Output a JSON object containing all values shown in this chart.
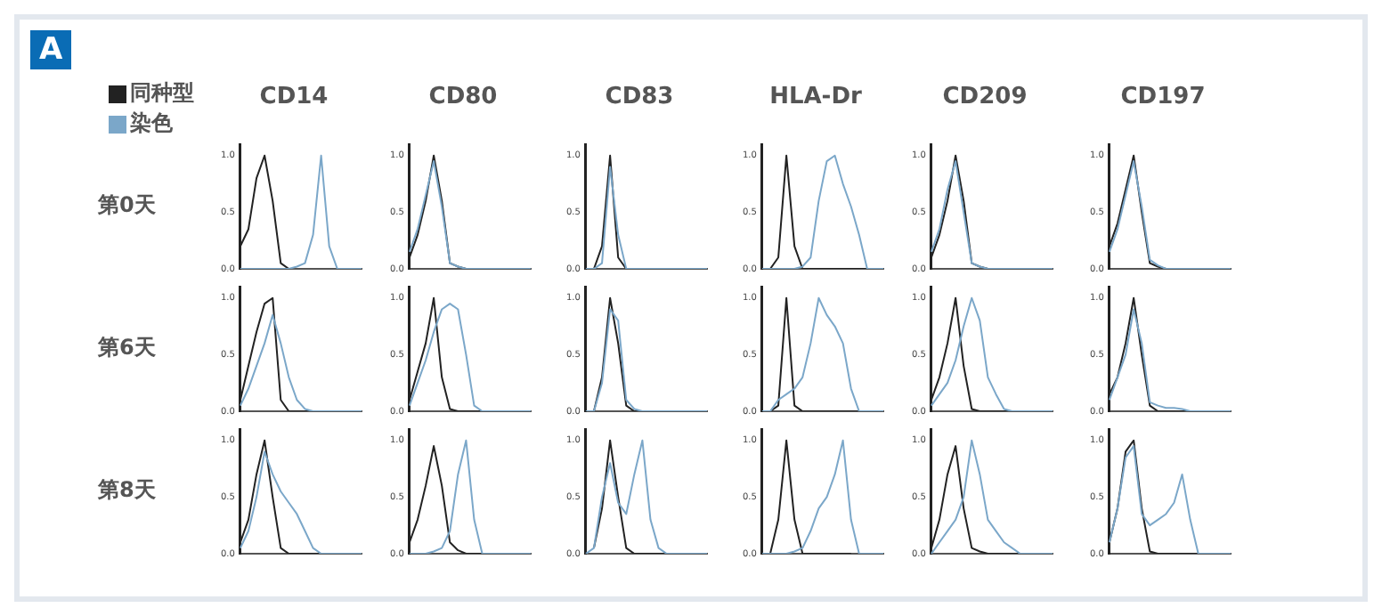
{
  "chart_data": [
    {
      "type": "line",
      "title": "CD14",
      "ylabel": "第0天",
      "annotations": [
        "A"
      ],
      "legend": "top left",
      "tick_labels": "y",
      "categories": [
        null,
        null,
        null,
        null,
        null,
        null,
        null,
        null,
        null,
        null,
        null,
        null,
        null,
        null,
        null,
        null
      ],
      "ylim": [
        0,
        1.1
      ],
      "yticks": [
        {
          "value": 0,
          "label": "0.0"
        },
        {
          "value": 0.5,
          "label": "0.5"
        },
        {
          "value": 1,
          "label": "1.0"
        }
      ],
      "series": [
        {
          "name": "同种型",
          "color": "#222222",
          "values": [
            0.2,
            0.35,
            0.8,
            1.0,
            0.6,
            0.05,
            0,
            null,
            null,
            null,
            null,
            null,
            null,
            null,
            null,
            null
          ]
        },
        {
          "name": "染色",
          "color": "#7ba7c9",
          "values": [
            0,
            0,
            0,
            0,
            0,
            0,
            0,
            0.02,
            0.05,
            0.3,
            1.0,
            0.2,
            0,
            0,
            0,
            0
          ]
        }
      ]
    },
    {
      "type": "line",
      "title": "CD80",
      "tick_labels": "y",
      "categories": [
        null,
        null,
        null,
        null,
        null,
        null,
        null,
        null,
        null,
        null,
        null,
        null,
        null,
        null,
        null,
        null
      ],
      "ylim": [
        0,
        1.1
      ],
      "yticks": [
        {
          "value": 0,
          "label": "0.0"
        },
        {
          "value": 0.5,
          "label": "0.5"
        },
        {
          "value": 1,
          "label": "1.0"
        }
      ],
      "series": [
        {
          "color": "#222222",
          "values": [
            0.1,
            0.3,
            0.6,
            1.0,
            0.6,
            0.05,
            0.02,
            0,
            null,
            null,
            null,
            null,
            null,
            null,
            null,
            null
          ]
        },
        {
          "color": "#7ba7c9",
          "values": [
            0.15,
            0.35,
            0.65,
            0.95,
            0.55,
            0.05,
            0.02,
            0,
            0,
            0,
            0,
            0,
            0,
            0,
            0,
            0
          ]
        }
      ]
    },
    {
      "type": "line",
      "title": "CD83",
      "tick_labels": "y",
      "categories": [
        null,
        null,
        null,
        null,
        null,
        null,
        null,
        null,
        null,
        null,
        null,
        null,
        null,
        null,
        null,
        null
      ],
      "ylim": [
        0,
        1.1
      ],
      "yticks": [
        {
          "value": 0,
          "label": "0.0"
        },
        {
          "value": 0.5,
          "label": "0.5"
        },
        {
          "value": 1,
          "label": "1.0"
        }
      ],
      "series": [
        {
          "color": "#222222",
          "values": [
            null,
            0,
            0.2,
            1.0,
            0.1,
            0,
            null,
            null,
            null,
            null,
            null,
            null,
            null,
            null,
            null,
            null
          ]
        },
        {
          "color": "#7ba7c9",
          "values": [
            0,
            0,
            0.05,
            0.9,
            0.3,
            0,
            0,
            0,
            0,
            0,
            0,
            0,
            0,
            0,
            0,
            0
          ]
        }
      ]
    },
    {
      "type": "line",
      "title": "HLA-Dr",
      "tick_labels": "y",
      "categories": [
        null,
        null,
        null,
        null,
        null,
        null,
        null,
        null,
        null,
        null,
        null,
        null,
        null,
        null,
        null,
        null
      ],
      "ylim": [
        0,
        1.1
      ],
      "yticks": [
        {
          "value": 0,
          "label": "0.0"
        },
        {
          "value": 0.5,
          "label": "0.5"
        },
        {
          "value": 1,
          "label": "1.0"
        }
      ],
      "series": [
        {
          "color": "#222222",
          "values": [
            null,
            0,
            0.1,
            1.0,
            0.2,
            0,
            0,
            0,
            0,
            0,
            0,
            0,
            0,
            0,
            null,
            null
          ]
        },
        {
          "color": "#7ba7c9",
          "values": [
            0,
            0,
            0,
            0,
            0,
            0.02,
            0.1,
            0.6,
            0.95,
            1.0,
            0.75,
            0.55,
            0.3,
            0,
            0,
            0
          ]
        }
      ]
    },
    {
      "type": "line",
      "title": "CD209",
      "tick_labels": "y",
      "categories": [
        null,
        null,
        null,
        null,
        null,
        null,
        null,
        null,
        null,
        null,
        null,
        null,
        null,
        null,
        null,
        null
      ],
      "ylim": [
        0,
        1.1
      ],
      "yticks": [
        {
          "value": 0,
          "label": "0.0"
        },
        {
          "value": 0.5,
          "label": "0.5"
        },
        {
          "value": 1,
          "label": "1.0"
        }
      ],
      "series": [
        {
          "color": "#222222",
          "values": [
            0.1,
            0.3,
            0.6,
            1.0,
            0.6,
            0.05,
            0.02,
            0,
            null,
            null,
            null,
            null,
            null,
            null,
            null,
            null
          ]
        },
        {
          "color": "#7ba7c9",
          "values": [
            0.15,
            0.35,
            0.7,
            0.95,
            0.5,
            0.05,
            0.02,
            0,
            0,
            0,
            0,
            0,
            0,
            0,
            0,
            0
          ]
        }
      ]
    },
    {
      "type": "line",
      "title": "CD197",
      "tick_labels": "y",
      "categories": [
        null,
        null,
        null,
        null,
        null,
        null,
        null,
        null,
        null,
        null,
        null,
        null,
        null,
        null,
        null,
        null
      ],
      "ylim": [
        0,
        1.1
      ],
      "yticks": [
        {
          "value": 0,
          "label": "0.0"
        },
        {
          "value": 0.5,
          "label": "0.5"
        },
        {
          "value": 1,
          "label": "1.0"
        }
      ],
      "series": [
        {
          "color": "#222222",
          "values": [
            0.2,
            0.4,
            0.7,
            1.0,
            0.5,
            0.05,
            0.02,
            0,
            null,
            null,
            null,
            null,
            null,
            null,
            null,
            null
          ]
        },
        {
          "color": "#7ba7c9",
          "values": [
            0.15,
            0.35,
            0.65,
            0.95,
            0.55,
            0.08,
            0.03,
            0,
            0,
            0,
            0,
            0,
            0,
            0,
            0,
            0
          ]
        }
      ]
    },
    {
      "type": "line",
      "ylabel": "第6天",
      "tick_labels": "y",
      "categories": [
        null,
        null,
        null,
        null,
        null,
        null,
        null,
        null,
        null,
        null,
        null,
        null,
        null,
        null,
        null,
        null
      ],
      "ylim": [
        0,
        1.1
      ],
      "yticks": [
        {
          "value": 0,
          "label": "0.0"
        },
        {
          "value": 0.5,
          "label": "0.5"
        },
        {
          "value": 1,
          "label": "1.0"
        }
      ],
      "series": [
        {
          "color": "#222222",
          "values": [
            0.1,
            0.4,
            0.7,
            0.95,
            1.0,
            0.1,
            0,
            0,
            0,
            0,
            null,
            null,
            null,
            null,
            null,
            null
          ]
        },
        {
          "color": "#7ba7c9",
          "values": [
            0.05,
            0.2,
            0.4,
            0.6,
            0.85,
            0.6,
            0.3,
            0.1,
            0.02,
            0,
            0,
            0,
            0,
            0,
            0,
            0
          ]
        }
      ]
    },
    {
      "type": "line",
      "tick_labels": "y",
      "categories": [
        null,
        null,
        null,
        null,
        null,
        null,
        null,
        null,
        null,
        null,
        null,
        null,
        null,
        null,
        null,
        null
      ],
      "ylim": [
        0,
        1.1
      ],
      "yticks": [
        {
          "value": 0,
          "label": "0.0"
        },
        {
          "value": 0.5,
          "label": "0.5"
        },
        {
          "value": 1,
          "label": "1.0"
        }
      ],
      "series": [
        {
          "color": "#222222",
          "values": [
            0.1,
            0.35,
            0.6,
            1.0,
            0.3,
            0.02,
            0,
            0,
            0,
            0,
            null,
            null,
            null,
            null,
            null,
            null
          ]
        },
        {
          "color": "#7ba7c9",
          "values": [
            0.05,
            0.25,
            0.45,
            0.7,
            0.9,
            0.95,
            0.9,
            0.5,
            0.05,
            0,
            0,
            0,
            0,
            0,
            0,
            0
          ]
        }
      ]
    },
    {
      "type": "line",
      "tick_labels": "y",
      "categories": [
        null,
        null,
        null,
        null,
        null,
        null,
        null,
        null,
        null,
        null,
        null,
        null,
        null,
        null,
        null,
        null
      ],
      "ylim": [
        0,
        1.1
      ],
      "yticks": [
        {
          "value": 0,
          "label": "0.0"
        },
        {
          "value": 0.5,
          "label": "0.5"
        },
        {
          "value": 1,
          "label": "1.0"
        }
      ],
      "series": [
        {
          "color": "#222222",
          "values": [
            null,
            0,
            0.3,
            1.0,
            0.6,
            0.05,
            0,
            0,
            null,
            null,
            null,
            null,
            null,
            null,
            null,
            null
          ]
        },
        {
          "color": "#7ba7c9",
          "values": [
            0,
            0,
            0.25,
            0.9,
            0.8,
            0.1,
            0.02,
            0,
            0,
            0,
            0,
            0,
            0,
            0,
            0,
            0
          ]
        }
      ]
    },
    {
      "type": "line",
      "tick_labels": "y",
      "categories": [
        null,
        null,
        null,
        null,
        null,
        null,
        null,
        null,
        null,
        null,
        null,
        null,
        null,
        null,
        null,
        null
      ],
      "ylim": [
        0,
        1.1
      ],
      "yticks": [
        {
          "value": 0,
          "label": "0.0"
        },
        {
          "value": 0.5,
          "label": "0.5"
        },
        {
          "value": 1,
          "label": "1.0"
        }
      ],
      "series": [
        {
          "color": "#222222",
          "values": [
            null,
            0,
            0.05,
            1.0,
            0.05,
            0,
            0,
            0,
            0,
            0,
            0,
            0,
            0,
            null,
            null,
            null
          ]
        },
        {
          "color": "#7ba7c9",
          "values": [
            0,
            0,
            0.1,
            0.15,
            0.2,
            0.3,
            0.6,
            1.0,
            0.85,
            0.75,
            0.6,
            0.2,
            0,
            0,
            0,
            0
          ]
        }
      ]
    },
    {
      "type": "line",
      "tick_labels": "y",
      "categories": [
        null,
        null,
        null,
        null,
        null,
        null,
        null,
        null,
        null,
        null,
        null,
        null,
        null,
        null,
        null,
        null
      ],
      "ylim": [
        0,
        1.1
      ],
      "yticks": [
        {
          "value": 0,
          "label": "0.0"
        },
        {
          "value": 0.5,
          "label": "0.5"
        },
        {
          "value": 1,
          "label": "1.0"
        }
      ],
      "series": [
        {
          "color": "#222222",
          "values": [
            0.1,
            0.3,
            0.6,
            1.0,
            0.4,
            0.02,
            0,
            0,
            0,
            0,
            0,
            null,
            null,
            null,
            null,
            null
          ]
        },
        {
          "color": "#7ba7c9",
          "values": [
            0.05,
            0.15,
            0.25,
            0.45,
            0.75,
            1.0,
            0.8,
            0.3,
            0.15,
            0.02,
            0,
            0,
            0,
            0,
            0,
            0
          ]
        }
      ]
    },
    {
      "type": "line",
      "tick_labels": "y",
      "categories": [
        null,
        null,
        null,
        null,
        null,
        null,
        null,
        null,
        null,
        null,
        null,
        null,
        null,
        null,
        null,
        null
      ],
      "ylim": [
        0,
        1.1
      ],
      "yticks": [
        {
          "value": 0,
          "label": "0.0"
        },
        {
          "value": 0.5,
          "label": "0.5"
        },
        {
          "value": 1,
          "label": "1.0"
        }
      ],
      "series": [
        {
          "color": "#222222",
          "values": [
            0.15,
            0.3,
            0.6,
            1.0,
            0.5,
            0.05,
            0,
            0,
            0,
            0,
            0,
            null,
            null,
            null,
            null,
            null
          ]
        },
        {
          "color": "#7ba7c9",
          "values": [
            0.1,
            0.3,
            0.5,
            0.9,
            0.6,
            0.08,
            0.05,
            0.03,
            0.03,
            0.02,
            0,
            0,
            0,
            0,
            0,
            0
          ]
        }
      ]
    },
    {
      "type": "line",
      "ylabel": "第8天",
      "tick_labels": "y",
      "categories": [
        null,
        null,
        null,
        null,
        null,
        null,
        null,
        null,
        null,
        null,
        null,
        null,
        null,
        null,
        null,
        null
      ],
      "ylim": [
        0,
        1.1
      ],
      "yticks": [
        {
          "value": 0,
          "label": "0.0"
        },
        {
          "value": 0.5,
          "label": "0.5"
        },
        {
          "value": 1,
          "label": "1.0"
        }
      ],
      "series": [
        {
          "color": "#222222",
          "values": [
            0.1,
            0.3,
            0.7,
            1.0,
            0.5,
            0.05,
            0,
            0,
            0,
            0,
            0,
            null,
            null,
            null,
            null,
            null
          ]
        },
        {
          "color": "#7ba7c9",
          "values": [
            0.05,
            0.2,
            0.5,
            0.9,
            0.7,
            0.55,
            0.45,
            0.35,
            0.2,
            0.05,
            0,
            0,
            0,
            0,
            0,
            0
          ]
        }
      ]
    },
    {
      "type": "line",
      "tick_labels": "y",
      "categories": [
        null,
        null,
        null,
        null,
        null,
        null,
        null,
        null,
        null,
        null,
        null,
        null,
        null,
        null,
        null,
        null
      ],
      "ylim": [
        0,
        1.1
      ],
      "yticks": [
        {
          "value": 0,
          "label": "0.0"
        },
        {
          "value": 0.5,
          "label": "0.5"
        },
        {
          "value": 1,
          "label": "1.0"
        }
      ],
      "series": [
        {
          "color": "#222222",
          "values": [
            0.1,
            0.3,
            0.6,
            0.95,
            0.6,
            0.1,
            0.03,
            0,
            0,
            0,
            null,
            null,
            null,
            null,
            null,
            null
          ]
        },
        {
          "color": "#7ba7c9",
          "values": [
            0,
            0,
            0,
            0.02,
            0.05,
            0.2,
            0.7,
            1.0,
            0.3,
            0,
            0,
            0,
            0,
            0,
            0,
            0
          ]
        }
      ]
    },
    {
      "type": "line",
      "tick_labels": "y",
      "categories": [
        null,
        null,
        null,
        null,
        null,
        null,
        null,
        null,
        null,
        null,
        null,
        null,
        null,
        null,
        null,
        null
      ],
      "ylim": [
        0,
        1.1
      ],
      "yticks": [
        {
          "value": 0,
          "label": "0.0"
        },
        {
          "value": 0.5,
          "label": "0.5"
        },
        {
          "value": 1,
          "label": "1.0"
        }
      ],
      "series": [
        {
          "color": "#222222",
          "values": [
            null,
            0.05,
            0.4,
            1.0,
            0.5,
            0.05,
            0,
            0,
            0,
            0,
            0,
            null,
            null,
            null,
            null,
            null
          ]
        },
        {
          "color": "#7ba7c9",
          "values": [
            0,
            0.05,
            0.5,
            0.8,
            0.45,
            0.35,
            0.7,
            1.0,
            0.3,
            0.05,
            0,
            0,
            0,
            0,
            0,
            0
          ]
        }
      ]
    },
    {
      "type": "line",
      "tick_labels": "y",
      "categories": [
        null,
        null,
        null,
        null,
        null,
        null,
        null,
        null,
        null,
        null,
        null,
        null,
        null,
        null,
        null,
        null
      ],
      "ylim": [
        0,
        1.1
      ],
      "yticks": [
        {
          "value": 0,
          "label": "0.0"
        },
        {
          "value": 0.5,
          "label": "0.5"
        },
        {
          "value": 1,
          "label": "1.0"
        }
      ],
      "series": [
        {
          "color": "#222222",
          "values": [
            null,
            0,
            0.3,
            1.0,
            0.3,
            0,
            0,
            0,
            0,
            0,
            0,
            0,
            null,
            null,
            null,
            null
          ]
        },
        {
          "color": "#7ba7c9",
          "values": [
            0,
            0,
            0,
            0,
            0.02,
            0.05,
            0.2,
            0.4,
            0.5,
            0.7,
            1.0,
            0.3,
            0,
            0,
            0,
            0
          ]
        }
      ]
    },
    {
      "type": "line",
      "tick_labels": "y",
      "categories": [
        null,
        null,
        null,
        null,
        null,
        null,
        null,
        null,
        null,
        null,
        null,
        null,
        null,
        null,
        null,
        null
      ],
      "ylim": [
        0,
        1.1
      ],
      "yticks": [
        {
          "value": 0,
          "label": "0.0"
        },
        {
          "value": 0.5,
          "label": "0.5"
        },
        {
          "value": 1,
          "label": "1.0"
        }
      ],
      "series": [
        {
          "color": "#222222",
          "values": [
            0.05,
            0.3,
            0.7,
            0.95,
            0.4,
            0.05,
            0.02,
            0,
            0,
            0,
            0,
            0,
            null,
            null,
            null,
            null
          ]
        },
        {
          "color": "#7ba7c9",
          "values": [
            0,
            0.1,
            0.2,
            0.3,
            0.5,
            1.0,
            0.7,
            0.3,
            0.2,
            0.1,
            0.05,
            0,
            0,
            0,
            0,
            0
          ]
        }
      ]
    },
    {
      "type": "line",
      "tick_labels": "y",
      "categories": [
        null,
        null,
        null,
        null,
        null,
        null,
        null,
        null,
        null,
        null,
        null,
        null,
        null,
        null,
        null,
        null
      ],
      "ylim": [
        0,
        1.1
      ],
      "yticks": [
        {
          "value": 0,
          "label": "0.0"
        },
        {
          "value": 0.5,
          "label": "0.5"
        },
        {
          "value": 1,
          "label": "1.0"
        }
      ],
      "series": [
        {
          "color": "#222222",
          "values": [
            0.1,
            0.4,
            0.9,
            1.0,
            0.4,
            0.02,
            0,
            0,
            0,
            0,
            0,
            0,
            null,
            null,
            null,
            null
          ]
        },
        {
          "color": "#7ba7c9",
          "values": [
            0.1,
            0.4,
            0.85,
            0.95,
            0.35,
            0.25,
            0.3,
            0.35,
            0.45,
            0.7,
            0.3,
            0,
            0,
            0,
            0,
            0
          ]
        }
      ]
    }
  ]
}
